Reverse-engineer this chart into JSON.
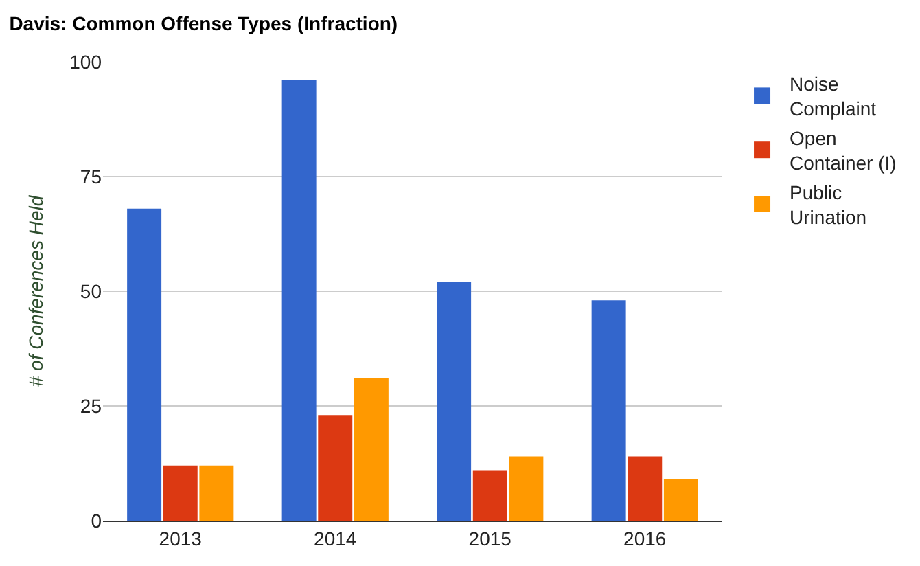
{
  "chart_data": {
    "type": "bar",
    "title": "Davis: Common Offense Types (Infraction)",
    "ylabel": "# of Conferences Held",
    "categories": [
      "2013",
      "2014",
      "2015",
      "2016"
    ],
    "series": [
      {
        "name": "Noise Complaint",
        "color": "#3366cc",
        "values": [
          68,
          96,
          52,
          48
        ]
      },
      {
        "name": "Open Container (I)",
        "color": "#dc3912",
        "values": [
          12,
          23,
          11,
          14
        ]
      },
      {
        "name": "Public Urination",
        "color": "#ff9900",
        "values": [
          12,
          31,
          14,
          9
        ]
      }
    ],
    "ylim": [
      0,
      100
    ],
    "yticks": [
      0,
      25,
      50,
      75,
      100
    ],
    "grid": "y",
    "legend": "top right"
  }
}
